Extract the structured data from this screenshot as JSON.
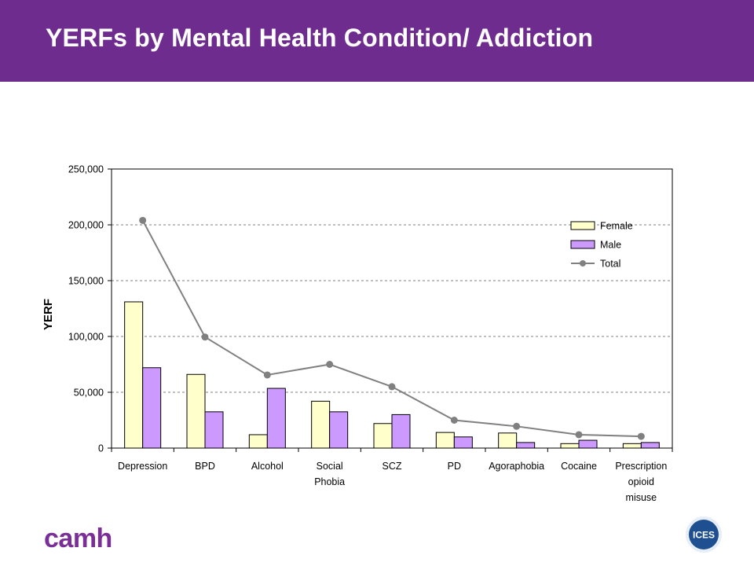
{
  "slide": {
    "title": "YERFs by Mental Health Condition/ Addiction",
    "logo_left": "camh",
    "logo_right": "ICES"
  },
  "colors": {
    "header_bg": "#6f2c8f",
    "female": "#ffffcc",
    "male": "#cc99ff",
    "total": "#808080"
  },
  "chart_data": {
    "type": "bar",
    "categories": [
      "Depression",
      "BPD",
      "Alcohol",
      "Social\nPhobia",
      "SCZ",
      "PD",
      "Agoraphobia",
      "Cocaine",
      "Prescription\nopioid\nmisuse"
    ],
    "series": [
      {
        "name": "Female",
        "type": "bar",
        "values": [
          131000,
          66000,
          12000,
          42000,
          22000,
          14000,
          13500,
          4000,
          4000
        ]
      },
      {
        "name": "Male",
        "type": "bar",
        "values": [
          72000,
          32500,
          53500,
          32500,
          30000,
          10000,
          5000,
          7000,
          5000
        ]
      },
      {
        "name": "Total",
        "type": "line",
        "values": [
          204000,
          99500,
          65500,
          75000,
          55000,
          25000,
          19500,
          12000,
          10500
        ]
      }
    ],
    "ylabel": "YERF",
    "xlabel": "",
    "ylim": [
      0,
      250000
    ],
    "yticks": [
      0,
      50000,
      100000,
      150000,
      200000,
      250000
    ],
    "ytick_labels": [
      "0",
      "50,000",
      "100,000",
      "150,000",
      "200,000",
      "250,000"
    ],
    "grid": "horizontal dashed",
    "legend": [
      "Female",
      "Male",
      "Total"
    ],
    "legend_position": "top-right"
  }
}
